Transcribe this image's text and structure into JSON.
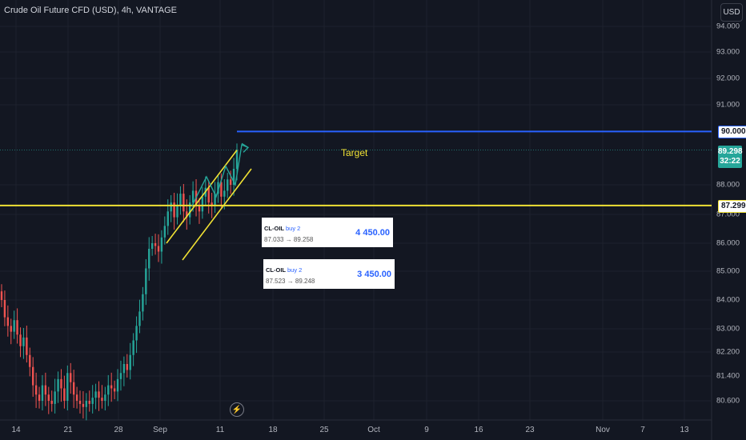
{
  "header": {
    "title": "Crude Oil Future CFD (USD), 4h, VANTAGE"
  },
  "currency_button": "USD",
  "y_axis_labels": [
    "94.000",
    "93.000",
    "92.000",
    "91.000",
    "88.000",
    "87.000",
    "86.000",
    "85.000",
    "84.000",
    "83.000",
    "82.200",
    "81.400",
    "80.600"
  ],
  "x_axis_labels": [
    "14",
    "21",
    "28",
    "Sep",
    "11",
    "18",
    "25",
    "Oct",
    "9",
    "16",
    "23",
    "Nov",
    "7",
    "13"
  ],
  "price_tags": {
    "target": "90.000",
    "support": "87.299",
    "current": "89.298",
    "countdown": "32:22"
  },
  "annotation_target": "Target",
  "orders": [
    {
      "symbol": "CL-OIL",
      "side": "buy 2",
      "range": "87.033 → 89.258",
      "amount": "4 450.00"
    },
    {
      "symbol": "CL-OIL",
      "side": "buy 2",
      "range": "87.523 → 89.248",
      "amount": "3 450.00"
    }
  ],
  "icons": {
    "bolt": "lightning-bolt-icon"
  },
  "colors": {
    "up": "#26a69a",
    "down": "#ef5350",
    "target_line": "#2962ff",
    "support_line": "#f0e134",
    "channel": "#f0e134",
    "projection": "#26a69a"
  },
  "chart_data": {
    "type": "candlestick",
    "title": "Crude Oil Future CFD (USD), 4h, VANTAGE",
    "ylim": [
      80.2,
      94.2
    ],
    "y_ticks": [
      94.0,
      93.0,
      92.0,
      91.0,
      88.0,
      87.0,
      86.0,
      85.0,
      84.0,
      83.0,
      82.2,
      81.4,
      80.6
    ],
    "x_ticks": [
      "14",
      "21",
      "28",
      "Sep",
      "11",
      "18",
      "25",
      "Oct",
      "9",
      "16",
      "23",
      "Nov",
      "7",
      "13"
    ],
    "horizontal_lines": [
      {
        "label": "Target",
        "value": 90.0
      },
      {
        "value": 87.299
      },
      {
        "value": 89.298
      }
    ],
    "series": [
      {
        "values": [
          84.0,
          83.4,
          83.1,
          82.9,
          83.3,
          82.8,
          82.4,
          82.7,
          82.1,
          81.7,
          81.1,
          80.8,
          80.6,
          81.1,
          80.8,
          80.6,
          80.5,
          80.9,
          81.3,
          81.0,
          80.6,
          81.5,
          81.2,
          80.8,
          80.6,
          80.5,
          80.4,
          80.6,
          80.5,
          80.7,
          80.9,
          80.7,
          80.6,
          80.8,
          81.1,
          81.0,
          80.9,
          81.3,
          81.5,
          81.8,
          81.6,
          82.1,
          82.6,
          83.1,
          83.6,
          84.2,
          85.1,
          85.8,
          86.0,
          85.9,
          85.7,
          86.2,
          86.6,
          87.1,
          87.4,
          86.9,
          87.3,
          87.7,
          87.1,
          86.9,
          87.4,
          87.8,
          87.3,
          87.1,
          87.6,
          87.9,
          87.4,
          87.3,
          87.7,
          88.1,
          87.6,
          87.8,
          88.2,
          88.0,
          88.6,
          89.3
        ]
      }
    ],
    "channel": {
      "upper": [
        [
          86.0,
          89.3
        ]
      ],
      "lower": [
        [
          85.4,
          88.6
        ]
      ]
    },
    "projection_path": [
      87.3,
      88.3,
      87.6,
      88.7,
      88.0,
      89.5,
      89.4
    ]
  }
}
